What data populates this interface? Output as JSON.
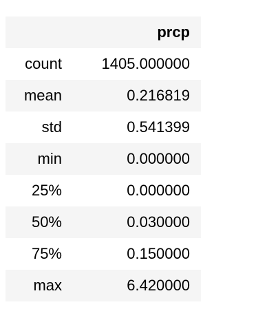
{
  "table": {
    "columns": [
      "prcp"
    ],
    "rows": [
      {
        "label": "count",
        "value": "1405.000000"
      },
      {
        "label": "mean",
        "value": "0.216819"
      },
      {
        "label": "std",
        "value": "0.541399"
      },
      {
        "label": "min",
        "value": "0.000000"
      },
      {
        "label": "25%",
        "value": "0.000000"
      },
      {
        "label": "50%",
        "value": "0.030000"
      },
      {
        "label": "75%",
        "value": "0.150000"
      },
      {
        "label": "max",
        "value": "6.420000"
      }
    ]
  },
  "colors": {
    "header_bg": "#f5f5f5",
    "stripe_bg": "#f5f5f5",
    "text": "#000000"
  }
}
